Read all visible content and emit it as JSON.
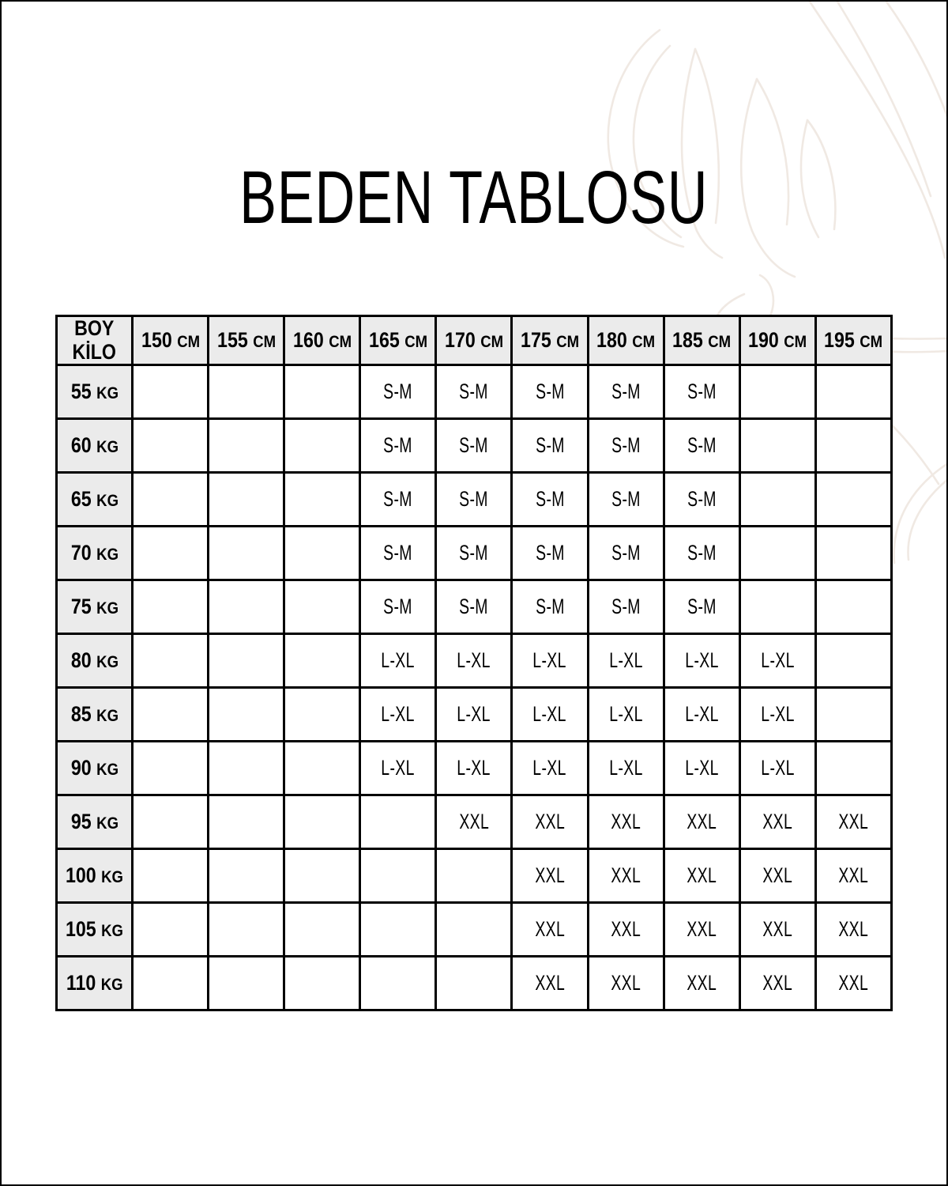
{
  "page": {
    "title": "BEDEN TABLOSU"
  },
  "colors": {
    "page_bg": "#ffffff",
    "page_border": "#000000",
    "table_border": "#000000",
    "header_bg": "#ebebeb",
    "cell_bg": "#ffffff",
    "text": "#000000",
    "decor_stroke": "#f0e9e3"
  },
  "decor": {
    "icon": "flower-line-art"
  },
  "table": {
    "corner": {
      "line1": "BOY",
      "line2": "KİLO"
    },
    "columns": [
      "150 CM",
      "155 CM",
      "160 CM",
      "165 CM",
      "170 CM",
      "175 CM",
      "180 CM",
      "185 CM",
      "190 CM",
      "195 CM"
    ],
    "rows": [
      {
        "label": "55 KG",
        "cells": [
          "",
          "",
          "",
          "S-M",
          "S-M",
          "S-M",
          "S-M",
          "S-M",
          "",
          ""
        ]
      },
      {
        "label": "60 KG",
        "cells": [
          "",
          "",
          "",
          "S-M",
          "S-M",
          "S-M",
          "S-M",
          "S-M",
          "",
          ""
        ]
      },
      {
        "label": "65 KG",
        "cells": [
          "",
          "",
          "",
          "S-M",
          "S-M",
          "S-M",
          "S-M",
          "S-M",
          "",
          ""
        ]
      },
      {
        "label": "70 KG",
        "cells": [
          "",
          "",
          "",
          "S-M",
          "S-M",
          "S-M",
          "S-M",
          "S-M",
          "",
          ""
        ]
      },
      {
        "label": "75 KG",
        "cells": [
          "",
          "",
          "",
          "S-M",
          "S-M",
          "S-M",
          "S-M",
          "S-M",
          "",
          ""
        ]
      },
      {
        "label": "80 KG",
        "cells": [
          "",
          "",
          "",
          "L-XL",
          "L-XL",
          "L-XL",
          "L-XL",
          "L-XL",
          "L-XL",
          ""
        ]
      },
      {
        "label": "85 KG",
        "cells": [
          "",
          "",
          "",
          "L-XL",
          "L-XL",
          "L-XL",
          "L-XL",
          "L-XL",
          "L-XL",
          ""
        ]
      },
      {
        "label": "90 KG",
        "cells": [
          "",
          "",
          "",
          "L-XL",
          "L-XL",
          "L-XL",
          "L-XL",
          "L-XL",
          "L-XL",
          ""
        ]
      },
      {
        "label": "95 KG",
        "cells": [
          "",
          "",
          "",
          "",
          "XXL",
          "XXL",
          "XXL",
          "XXL",
          "XXL",
          "XXL"
        ]
      },
      {
        "label": "100 KG",
        "cells": [
          "",
          "",
          "",
          "",
          "",
          "XXL",
          "XXL",
          "XXL",
          "XXL",
          "XXL"
        ]
      },
      {
        "label": "105 KG",
        "cells": [
          "",
          "",
          "",
          "",
          "",
          "XXL",
          "XXL",
          "XXL",
          "XXL",
          "XXL"
        ]
      },
      {
        "label": "110 KG",
        "cells": [
          "",
          "",
          "",
          "",
          "",
          "XXL",
          "XXL",
          "XXL",
          "XXL",
          "XXL"
        ]
      }
    ]
  }
}
